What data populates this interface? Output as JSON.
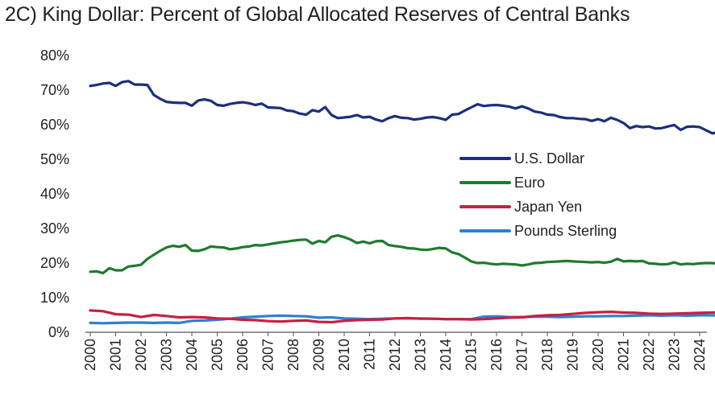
{
  "chart_data": {
    "type": "line",
    "title": "2C) King Dollar: Percent of Global Allocated Reserves of Central Banks",
    "xlabel": "",
    "ylabel": "",
    "ylim": [
      0,
      80
    ],
    "xlim": [
      2000,
      2024.75
    ],
    "y_ticks": [
      0,
      10,
      20,
      30,
      40,
      50,
      60,
      70,
      80
    ],
    "y_tick_labels": [
      "0%",
      "10%",
      "20%",
      "30%",
      "40%",
      "50%",
      "60%",
      "70%",
      "80%"
    ],
    "x_tick_labels": [
      "2000",
      "2001",
      "2002",
      "2003",
      "2004",
      "2005",
      "2006",
      "2007",
      "2008",
      "2009",
      "2010",
      "2011",
      "2012",
      "2013",
      "2014",
      "2015",
      "2016",
      "2017",
      "2018",
      "2019",
      "2020",
      "2021",
      "2022",
      "2023",
      "2024"
    ],
    "grid": false,
    "legend_position": "center-right",
    "series": [
      {
        "name": "U.S. Dollar",
        "color": "#1b2f7c",
        "points": [
          [
            2000,
            71.2
          ],
          [
            2000.25,
            71.5
          ],
          [
            2000.5,
            71.9
          ],
          [
            2000.75,
            72.1
          ],
          [
            2001,
            71.2
          ],
          [
            2001.25,
            72.3
          ],
          [
            2001.5,
            72.6
          ],
          [
            2001.75,
            71.6
          ],
          [
            2002,
            71.6
          ],
          [
            2002.25,
            71.5
          ],
          [
            2002.5,
            68.6
          ],
          [
            2002.75,
            67.5
          ],
          [
            2003,
            66.6
          ],
          [
            2003.25,
            66.4
          ],
          [
            2003.5,
            66.3
          ],
          [
            2003.75,
            66.3
          ],
          [
            2004,
            65.5
          ],
          [
            2004.25,
            67.0
          ],
          [
            2004.5,
            67.3
          ],
          [
            2004.75,
            66.9
          ],
          [
            2005,
            65.7
          ],
          [
            2005.25,
            65.5
          ],
          [
            2005.5,
            66.0
          ],
          [
            2005.75,
            66.3
          ],
          [
            2006,
            66.5
          ],
          [
            2006.25,
            66.2
          ],
          [
            2006.5,
            65.7
          ],
          [
            2006.75,
            66.1
          ],
          [
            2007,
            65.0
          ],
          [
            2007.25,
            64.9
          ],
          [
            2007.5,
            64.8
          ],
          [
            2007.75,
            64.1
          ],
          [
            2008,
            63.9
          ],
          [
            2008.25,
            63.2
          ],
          [
            2008.5,
            62.9
          ],
          [
            2008.75,
            64.2
          ],
          [
            2009,
            63.8
          ],
          [
            2009.25,
            65.1
          ],
          [
            2009.5,
            62.8
          ],
          [
            2009.75,
            61.9
          ],
          [
            2010,
            62.1
          ],
          [
            2010.25,
            62.3
          ],
          [
            2010.5,
            62.8
          ],
          [
            2010.75,
            62.1
          ],
          [
            2011,
            62.3
          ],
          [
            2011.25,
            61.5
          ],
          [
            2011.5,
            61.0
          ],
          [
            2011.75,
            61.9
          ],
          [
            2012,
            62.5
          ],
          [
            2012.25,
            62.0
          ],
          [
            2012.5,
            61.9
          ],
          [
            2012.75,
            61.5
          ],
          [
            2013,
            61.7
          ],
          [
            2013.25,
            62.1
          ],
          [
            2013.5,
            62.2
          ],
          [
            2013.75,
            61.9
          ],
          [
            2014,
            61.4
          ],
          [
            2014.25,
            62.9
          ],
          [
            2014.5,
            63.1
          ],
          [
            2014.75,
            64.1
          ],
          [
            2015,
            65.0
          ],
          [
            2015.25,
            65.9
          ],
          [
            2015.5,
            65.4
          ],
          [
            2015.75,
            65.6
          ],
          [
            2016,
            65.7
          ],
          [
            2016.25,
            65.5
          ],
          [
            2016.5,
            65.2
          ],
          [
            2016.75,
            64.7
          ],
          [
            2017,
            65.3
          ],
          [
            2017.25,
            64.7
          ],
          [
            2017.5,
            63.8
          ],
          [
            2017.75,
            63.5
          ],
          [
            2018,
            62.9
          ],
          [
            2018.25,
            62.8
          ],
          [
            2018.5,
            62.2
          ],
          [
            2018.75,
            61.9
          ],
          [
            2019,
            61.9
          ],
          [
            2019.25,
            61.7
          ],
          [
            2019.5,
            61.6
          ],
          [
            2019.75,
            61.1
          ],
          [
            2020,
            61.6
          ],
          [
            2020.25,
            61.0
          ],
          [
            2020.5,
            62.0
          ],
          [
            2020.75,
            61.4
          ],
          [
            2021,
            60.5
          ],
          [
            2021.25,
            59.0
          ],
          [
            2021.5,
            59.6
          ],
          [
            2021.75,
            59.3
          ],
          [
            2022,
            59.5
          ],
          [
            2022.25,
            58.9
          ],
          [
            2022.5,
            59.0
          ],
          [
            2022.75,
            59.5
          ],
          [
            2023,
            59.9
          ],
          [
            2023.25,
            58.5
          ],
          [
            2023.5,
            59.4
          ],
          [
            2023.75,
            59.5
          ],
          [
            2024,
            59.3
          ],
          [
            2024.25,
            58.4
          ],
          [
            2024.5,
            57.5
          ],
          [
            2024.75,
            57.9
          ]
        ]
      },
      {
        "name": "Euro",
        "color": "#1f7a2e",
        "points": [
          [
            2000,
            17.5
          ],
          [
            2000.25,
            17.6
          ],
          [
            2000.5,
            17.1
          ],
          [
            2000.75,
            18.5
          ],
          [
            2001,
            17.9
          ],
          [
            2001.25,
            17.9
          ],
          [
            2001.5,
            19.0
          ],
          [
            2001.75,
            19.2
          ],
          [
            2002,
            19.5
          ],
          [
            2002.25,
            21.2
          ],
          [
            2002.5,
            22.4
          ],
          [
            2002.75,
            23.5
          ],
          [
            2003,
            24.5
          ],
          [
            2003.25,
            25.0
          ],
          [
            2003.5,
            24.7
          ],
          [
            2003.75,
            25.2
          ],
          [
            2004,
            23.6
          ],
          [
            2004.25,
            23.5
          ],
          [
            2004.5,
            24.0
          ],
          [
            2004.75,
            24.8
          ],
          [
            2005,
            24.6
          ],
          [
            2005.25,
            24.5
          ],
          [
            2005.5,
            24.0
          ],
          [
            2005.75,
            24.2
          ],
          [
            2006,
            24.6
          ],
          [
            2006.25,
            24.8
          ],
          [
            2006.5,
            25.2
          ],
          [
            2006.75,
            25.1
          ],
          [
            2007,
            25.4
          ],
          [
            2007.25,
            25.7
          ],
          [
            2007.5,
            26.0
          ],
          [
            2007.75,
            26.2
          ],
          [
            2008,
            26.5
          ],
          [
            2008.25,
            26.7
          ],
          [
            2008.5,
            26.8
          ],
          [
            2008.75,
            25.6
          ],
          [
            2009,
            26.4
          ],
          [
            2009.25,
            26.0
          ],
          [
            2009.5,
            27.6
          ],
          [
            2009.75,
            28.0
          ],
          [
            2010,
            27.5
          ],
          [
            2010.25,
            26.8
          ],
          [
            2010.5,
            25.8
          ],
          [
            2010.75,
            26.2
          ],
          [
            2011,
            25.7
          ],
          [
            2011.25,
            26.3
          ],
          [
            2011.5,
            26.4
          ],
          [
            2011.75,
            25.2
          ],
          [
            2012,
            24.9
          ],
          [
            2012.25,
            24.7
          ],
          [
            2012.5,
            24.3
          ],
          [
            2012.75,
            24.2
          ],
          [
            2013,
            23.9
          ],
          [
            2013.25,
            23.8
          ],
          [
            2013.5,
            24.1
          ],
          [
            2013.75,
            24.4
          ],
          [
            2014,
            24.2
          ],
          [
            2014.25,
            23.1
          ],
          [
            2014.5,
            22.6
          ],
          [
            2014.75,
            21.6
          ],
          [
            2015,
            20.5
          ],
          [
            2015.25,
            20.0
          ],
          [
            2015.5,
            20.1
          ],
          [
            2015.75,
            19.8
          ],
          [
            2016,
            19.6
          ],
          [
            2016.25,
            19.8
          ],
          [
            2016.5,
            19.7
          ],
          [
            2016.75,
            19.6
          ],
          [
            2017,
            19.3
          ],
          [
            2017.25,
            19.6
          ],
          [
            2017.5,
            20.0
          ],
          [
            2017.75,
            20.1
          ],
          [
            2018,
            20.3
          ],
          [
            2018.25,
            20.4
          ],
          [
            2018.5,
            20.5
          ],
          [
            2018.75,
            20.6
          ],
          [
            2019,
            20.5
          ],
          [
            2019.25,
            20.4
          ],
          [
            2019.5,
            20.3
          ],
          [
            2019.75,
            20.2
          ],
          [
            2020,
            20.3
          ],
          [
            2020.25,
            20.1
          ],
          [
            2020.5,
            20.4
          ],
          [
            2020.75,
            21.2
          ],
          [
            2021,
            20.5
          ],
          [
            2021.25,
            20.6
          ],
          [
            2021.5,
            20.5
          ],
          [
            2021.75,
            20.6
          ],
          [
            2022,
            19.9
          ],
          [
            2022.25,
            19.8
          ],
          [
            2022.5,
            19.6
          ],
          [
            2022.75,
            19.7
          ],
          [
            2023,
            20.2
          ],
          [
            2023.25,
            19.6
          ],
          [
            2023.5,
            19.8
          ],
          [
            2023.75,
            19.7
          ],
          [
            2024,
            19.9
          ],
          [
            2024.25,
            20.0
          ],
          [
            2024.5,
            20.0
          ],
          [
            2024.75,
            19.8
          ]
        ]
      },
      {
        "name": "Japan Yen",
        "color": "#c8203f",
        "points": [
          [
            2000,
            6.3
          ],
          [
            2000.5,
            6.1
          ],
          [
            2001,
            5.2
          ],
          [
            2001.5,
            5.1
          ],
          [
            2002,
            4.4
          ],
          [
            2002.5,
            5.0
          ],
          [
            2003,
            4.7
          ],
          [
            2003.5,
            4.3
          ],
          [
            2004,
            4.4
          ],
          [
            2004.5,
            4.3
          ],
          [
            2005,
            4.0
          ],
          [
            2005.5,
            3.9
          ],
          [
            2006,
            3.6
          ],
          [
            2006.5,
            3.5
          ],
          [
            2007,
            3.2
          ],
          [
            2007.5,
            3.1
          ],
          [
            2008,
            3.3
          ],
          [
            2008.5,
            3.4
          ],
          [
            2009,
            3.0
          ],
          [
            2009.5,
            2.9
          ],
          [
            2010,
            3.3
          ],
          [
            2010.5,
            3.5
          ],
          [
            2011,
            3.6
          ],
          [
            2011.5,
            3.7
          ],
          [
            2012,
            4.0
          ],
          [
            2012.5,
            4.1
          ],
          [
            2013,
            3.9
          ],
          [
            2013.5,
            3.9
          ],
          [
            2014,
            3.8
          ],
          [
            2014.5,
            3.8
          ],
          [
            2015,
            3.7
          ],
          [
            2015.5,
            3.8
          ],
          [
            2016,
            4.0
          ],
          [
            2016.5,
            4.2
          ],
          [
            2017,
            4.3
          ],
          [
            2017.5,
            4.7
          ],
          [
            2018,
            4.9
          ],
          [
            2018.5,
            5.0
          ],
          [
            2019,
            5.3
          ],
          [
            2019.5,
            5.6
          ],
          [
            2020,
            5.8
          ],
          [
            2020.5,
            5.9
          ],
          [
            2021,
            5.7
          ],
          [
            2021.5,
            5.6
          ],
          [
            2022,
            5.4
          ],
          [
            2022.5,
            5.3
          ],
          [
            2023,
            5.4
          ],
          [
            2023.5,
            5.5
          ],
          [
            2024,
            5.6
          ],
          [
            2024.5,
            5.7
          ],
          [
            2024.75,
            5.8
          ]
        ]
      },
      {
        "name": "Pounds Sterling",
        "color": "#2e7fd2",
        "points": [
          [
            2000,
            2.7
          ],
          [
            2000.5,
            2.6
          ],
          [
            2001,
            2.7
          ],
          [
            2001.5,
            2.8
          ],
          [
            2002,
            2.8
          ],
          [
            2002.5,
            2.7
          ],
          [
            2003,
            2.8
          ],
          [
            2003.5,
            2.7
          ],
          [
            2004,
            3.3
          ],
          [
            2004.5,
            3.4
          ],
          [
            2005,
            3.6
          ],
          [
            2005.5,
            3.9
          ],
          [
            2006,
            4.3
          ],
          [
            2006.5,
            4.5
          ],
          [
            2007,
            4.7
          ],
          [
            2007.5,
            4.8
          ],
          [
            2008,
            4.7
          ],
          [
            2008.5,
            4.6
          ],
          [
            2009,
            4.2
          ],
          [
            2009.5,
            4.3
          ],
          [
            2010,
            4.0
          ],
          [
            2010.5,
            3.9
          ],
          [
            2011,
            3.8
          ],
          [
            2011.5,
            3.9
          ],
          [
            2012,
            4.0
          ],
          [
            2012.5,
            4.0
          ],
          [
            2013,
            4.0
          ],
          [
            2013.5,
            3.9
          ],
          [
            2014,
            3.8
          ],
          [
            2014.5,
            3.8
          ],
          [
            2015,
            3.8
          ],
          [
            2015.5,
            4.5
          ],
          [
            2016,
            4.6
          ],
          [
            2016.5,
            4.4
          ],
          [
            2017,
            4.4
          ],
          [
            2017.5,
            4.5
          ],
          [
            2018,
            4.5
          ],
          [
            2018.5,
            4.4
          ],
          [
            2019,
            4.5
          ],
          [
            2019.5,
            4.6
          ],
          [
            2020,
            4.6
          ],
          [
            2020.5,
            4.7
          ],
          [
            2021,
            4.7
          ],
          [
            2021.5,
            4.8
          ],
          [
            2022,
            4.9
          ],
          [
            2022.5,
            4.8
          ],
          [
            2023,
            4.9
          ],
          [
            2023.5,
            4.8
          ],
          [
            2024,
            4.9
          ],
          [
            2024.5,
            4.9
          ],
          [
            2024.75,
            4.8
          ]
        ]
      }
    ]
  }
}
